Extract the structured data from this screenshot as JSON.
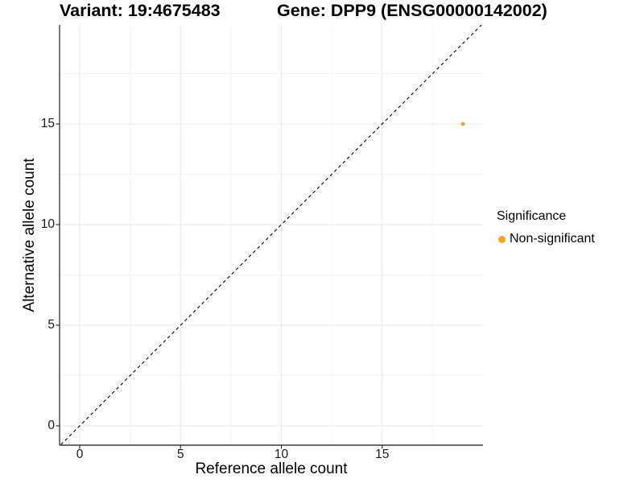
{
  "chart_data": {
    "type": "scatter",
    "title_left": "Variant: 19:4675483",
    "title_right": "Gene: DPP9 (ENSG00000142002)",
    "xlabel": "Reference allele count",
    "ylabel": "Alternative allele count",
    "xlim": [
      -1.0,
      20.0
    ],
    "ylim": [
      -0.96,
      19.92
    ],
    "x_ticks": [
      0,
      5,
      10,
      15
    ],
    "y_ticks": [
      0,
      5,
      10,
      15
    ],
    "x_minor_ticks": [
      2.5,
      7.5,
      12.5,
      17.5
    ],
    "y_minor_ticks": [
      2.5,
      7.5,
      12.5,
      17.5
    ],
    "grid": "major+minor",
    "legend_position": "right",
    "series": [
      {
        "name": "Non-significant",
        "color": "#FAA21E",
        "point_radius": 2.4,
        "points": [
          {
            "x": 19,
            "y": 15
          }
        ]
      }
    ],
    "reference_line": {
      "slope": 1,
      "intercept": 0,
      "style": "dashed",
      "color": "#000000"
    },
    "legend": {
      "title": "Significance",
      "items": [
        {
          "label": "Non-significant",
          "color": "#FAA21E"
        }
      ]
    }
  },
  "colors": {
    "background": "#FFFFFF",
    "axis_line": "#3C3C3C",
    "tick_mark": "#333333",
    "grid_major": "#E8E8E8",
    "grid_minor": "#F4F4F4",
    "tick_label": "#1A1A1A",
    "text": "#000000"
  }
}
